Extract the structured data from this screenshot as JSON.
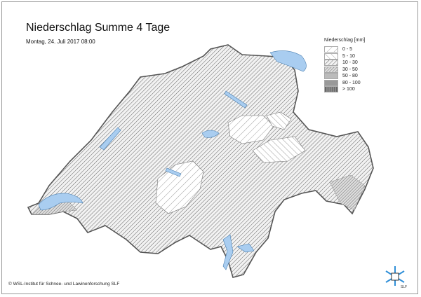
{
  "header": {
    "title": "Niederschlag Summe 4 Tage",
    "subtitle": "Montag, 24. Juli 2017 08:00"
  },
  "legend": {
    "title": "Niederschlag [mm]",
    "items": [
      {
        "label": "0 - 5",
        "pattern": "sparse-diagonal-right"
      },
      {
        "label": "5 - 10",
        "pattern": "sparse-diagonal-left"
      },
      {
        "label": "10 - 30",
        "pattern": "dense-diagonal"
      },
      {
        "label": "30 - 50",
        "pattern": "crosshatch-light"
      },
      {
        "label": "50 - 80",
        "pattern": "crosshatch-dense"
      },
      {
        "label": "80 - 100",
        "pattern": "dark-crosshatch"
      },
      {
        "label": "> 100",
        "pattern": "vertical-lines"
      }
    ]
  },
  "map": {
    "region": "Switzerland",
    "lake_color": "#a9cdf0",
    "border_color": "#555555"
  },
  "footer": {
    "copyright": "© WSL-Institut für Schnee- und Lawinenforschung SLF",
    "logo_text": "SLF"
  },
  "colors": {
    "logo_blue": "#2f8fd8"
  }
}
